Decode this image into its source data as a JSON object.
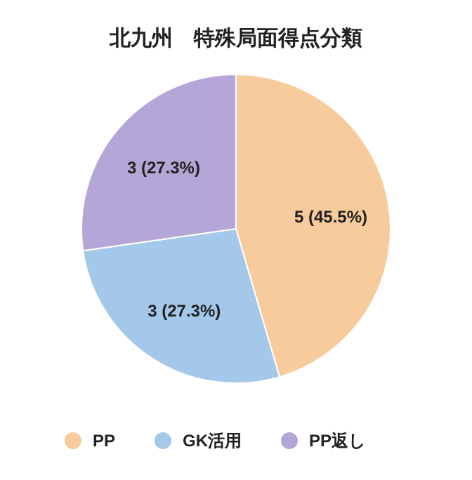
{
  "chart_data": {
    "type": "pie",
    "title": "北九州　特殊局面得点分類",
    "categories": [
      "PP",
      "GK活用",
      "PP返し"
    ],
    "values": [
      5,
      3,
      3
    ],
    "colors": [
      "#f8cb9c",
      "#a4c8ea",
      "#b5a6d8"
    ],
    "value_labels": [
      "5 (45.5%)",
      "3 (27.3%)",
      "3 (27.3%)"
    ],
    "legend": "bottom"
  }
}
